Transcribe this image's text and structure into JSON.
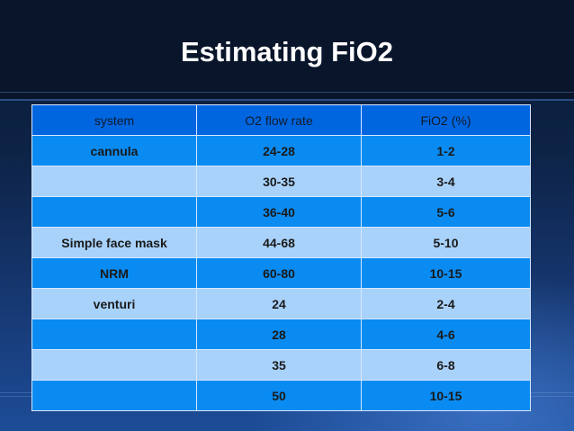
{
  "title": "Estimating FiO2",
  "table": {
    "headers": [
      "system",
      "O2 flow rate",
      "FiO2 (%)"
    ],
    "rows": [
      [
        "cannula",
        "24-28",
        "1-2"
      ],
      [
        "",
        "30-35",
        "3-4"
      ],
      [
        "",
        "36-40",
        "5-6"
      ],
      [
        "Simple face mask",
        "44-68",
        "5-10"
      ],
      [
        "NRM",
        "60-80",
        "10-15"
      ],
      [
        "venturi",
        "24",
        "2-4"
      ],
      [
        "",
        "28",
        "4-6"
      ],
      [
        "",
        "35",
        "6-8"
      ],
      [
        "",
        "50",
        "10-15"
      ]
    ]
  },
  "colors": {
    "title_bar": "#08152b",
    "header_row": "#0066e0",
    "row_dark": "#0a8bf2",
    "row_light": "#a9d2fb"
  }
}
